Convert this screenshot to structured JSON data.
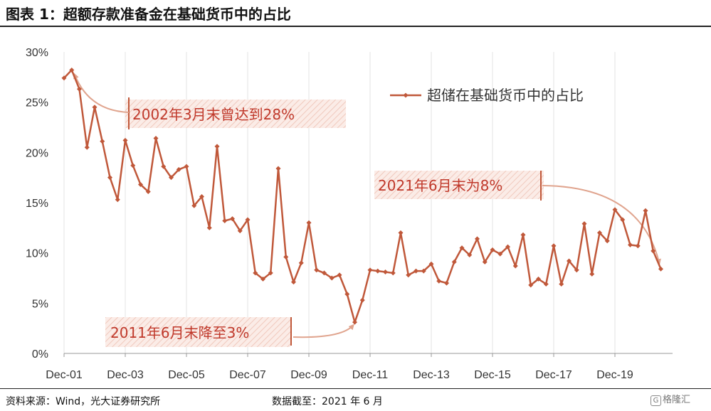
{
  "title": "图表 1：超额存款准备金在基础货币中的占比",
  "footer": {
    "source": "资料来源：Wind，光大证券研究所",
    "cutoff": "数据截至：2021 年 6 月"
  },
  "watermark": "格隆汇",
  "colors": {
    "series": "#c0583a",
    "annotation_text": "#c0392b",
    "annotation_bg": "#f6ddd5"
  },
  "chart_data": {
    "type": "line",
    "xlabel": "",
    "ylabel": "",
    "ylim": [
      0,
      30
    ],
    "yticks": [
      "0%",
      "5%",
      "10%",
      "15%",
      "20%",
      "25%",
      "30%"
    ],
    "xticks": [
      "Dec-01",
      "Dec-03",
      "Dec-05",
      "Dec-07",
      "Dec-09",
      "Dec-11",
      "Dec-13",
      "Dec-15",
      "Dec-17",
      "Dec-19"
    ],
    "grid": "vertical",
    "legend": "top-right",
    "series": [
      {
        "name": "超储在基础货币中的占比",
        "points": [
          [
            "2001-12",
            27.4
          ],
          [
            "2002-03",
            28.2
          ],
          [
            "2002-06",
            26.3
          ],
          [
            "2002-09",
            20.5
          ],
          [
            "2002-12",
            24.5
          ],
          [
            "2003-03",
            21.1
          ],
          [
            "2003-06",
            17.5
          ],
          [
            "2003-09",
            15.3
          ],
          [
            "2003-12",
            21.2
          ],
          [
            "2004-03",
            18.7
          ],
          [
            "2004-06",
            16.8
          ],
          [
            "2004-09",
            16.1
          ],
          [
            "2004-12",
            21.4
          ],
          [
            "2005-03",
            18.6
          ],
          [
            "2005-06",
            17.5
          ],
          [
            "2005-09",
            18.3
          ],
          [
            "2005-12",
            18.6
          ],
          [
            "2006-03",
            14.7
          ],
          [
            "2006-06",
            15.6
          ],
          [
            "2006-09",
            12.5
          ],
          [
            "2006-12",
            20.6
          ],
          [
            "2007-03",
            13.2
          ],
          [
            "2007-06",
            13.4
          ],
          [
            "2007-09",
            12.2
          ],
          [
            "2007-12",
            13.3
          ],
          [
            "2008-03",
            8.0
          ],
          [
            "2008-06",
            7.4
          ],
          [
            "2008-09",
            8.0
          ],
          [
            "2008-12",
            18.4
          ],
          [
            "2009-03",
            9.6
          ],
          [
            "2009-06",
            7.1
          ],
          [
            "2009-09",
            9.0
          ],
          [
            "2009-12",
            13.0
          ],
          [
            "2010-03",
            8.3
          ],
          [
            "2010-06",
            8.0
          ],
          [
            "2010-09",
            7.5
          ],
          [
            "2010-12",
            7.8
          ],
          [
            "2011-03",
            5.9
          ],
          [
            "2011-06",
            3.1
          ],
          [
            "2011-09",
            5.3
          ],
          [
            "2011-12",
            8.3
          ],
          [
            "2012-03",
            8.2
          ],
          [
            "2012-06",
            8.1
          ],
          [
            "2012-09",
            8.0
          ],
          [
            "2012-12",
            12.0
          ],
          [
            "2013-03",
            7.8
          ],
          [
            "2013-06",
            8.2
          ],
          [
            "2013-09",
            8.2
          ],
          [
            "2013-12",
            8.9
          ],
          [
            "2014-03",
            7.2
          ],
          [
            "2014-06",
            7.0
          ],
          [
            "2014-09",
            9.1
          ],
          [
            "2014-12",
            10.5
          ],
          [
            "2015-03",
            9.8
          ],
          [
            "2015-06",
            11.4
          ],
          [
            "2015-09",
            9.1
          ],
          [
            "2015-12",
            10.3
          ],
          [
            "2016-03",
            9.9
          ],
          [
            "2016-06",
            10.6
          ],
          [
            "2016-09",
            8.7
          ],
          [
            "2016-12",
            11.8
          ],
          [
            "2017-03",
            6.8
          ],
          [
            "2017-06",
            7.4
          ],
          [
            "2017-09",
            6.9
          ],
          [
            "2017-12",
            10.7
          ],
          [
            "2018-03",
            6.9
          ],
          [
            "2018-06",
            9.2
          ],
          [
            "2018-09",
            8.3
          ],
          [
            "2018-12",
            12.9
          ],
          [
            "2019-03",
            7.9
          ],
          [
            "2019-06",
            12.0
          ],
          [
            "2019-09",
            11.2
          ],
          [
            "2019-12",
            14.3
          ],
          [
            "2020-03",
            13.3
          ],
          [
            "2020-06",
            10.8
          ],
          [
            "2020-09",
            10.7
          ],
          [
            "2020-12",
            14.2
          ],
          [
            "2021-03",
            10.2
          ],
          [
            "2021-06",
            8.4
          ]
        ]
      }
    ],
    "annotations": [
      {
        "text": "2002年3月末曾达到28%",
        "target": [
          "2002-03",
          28.2
        ]
      },
      {
        "text": "2011年6月末降至3%",
        "target": [
          "2011-06",
          3.1
        ]
      },
      {
        "text": "2021年6月末为8%",
        "target": [
          "2021-06",
          8.4
        ]
      }
    ]
  }
}
